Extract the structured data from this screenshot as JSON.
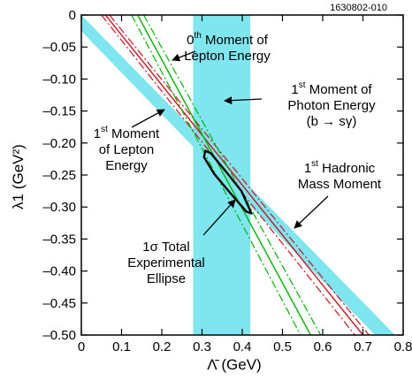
{
  "figure_id": "1630802-010",
  "chart_data": {
    "type": "line",
    "title": "",
    "xlabel": "Λ̄ (GeV)",
    "ylabel": "λ1 (GeV²)",
    "xlim": [
      0,
      0.8
    ],
    "ylim": [
      -0.5,
      0
    ],
    "x_ticks": [
      "0",
      "0.1",
      "0.2",
      "0.3",
      "0.4",
      "0.5",
      "0.6",
      "0.7",
      "0.8"
    ],
    "y_ticks": [
      "0",
      "–0.05",
      "–0.10",
      "–0.15",
      "–0.20",
      "–0.25",
      "–0.30",
      "–0.35",
      "–0.40",
      "–0.45",
      "–0.50"
    ],
    "grid": false,
    "legend": "none",
    "colors": {
      "band": "#7fe6f0",
      "ellipse": "#000000",
      "red_lines": "#c8141e",
      "green_lines": "#00b400"
    },
    "bands": [
      {
        "label_key": "hadronic",
        "orientation": "diagonal",
        "upper_edge": [
          [
            0.0,
            0.0
          ],
          [
            0.78,
            -0.5
          ]
        ],
        "lower_edge": [
          [
            0.0,
            -0.025
          ],
          [
            0.73,
            -0.5
          ]
        ]
      },
      {
        "label_key": "photon",
        "orientation": "vertical",
        "x_range": [
          0.278,
          0.42
        ]
      }
    ],
    "constraint_lines": [
      {
        "group": "lepton_1st",
        "style": "solid",
        "color": "red",
        "points": [
          [
            0.06,
            0.0
          ],
          [
            0.7,
            -0.5
          ]
        ]
      },
      {
        "group": "lepton_1st",
        "style": "dashed",
        "color": "red",
        "points": [
          [
            0.05,
            0.0
          ],
          [
            0.68,
            -0.5
          ]
        ]
      },
      {
        "group": "lepton_1st",
        "style": "dashed",
        "color": "red",
        "points": [
          [
            0.07,
            0.0
          ],
          [
            0.715,
            -0.5
          ]
        ]
      },
      {
        "group": "lepton_0th",
        "style": "solid",
        "color": "green",
        "points": [
          [
            0.14,
            0.0
          ],
          [
            0.57,
            -0.5
          ]
        ]
      },
      {
        "group": "lepton_0th",
        "style": "dashed",
        "color": "green",
        "points": [
          [
            0.125,
            0.0
          ],
          [
            0.545,
            -0.5
          ]
        ]
      },
      {
        "group": "lepton_0th",
        "style": "dashed",
        "color": "green",
        "points": [
          [
            0.155,
            0.0
          ],
          [
            0.595,
            -0.5
          ]
        ]
      }
    ],
    "ellipse": {
      "points": [
        [
          0.308,
          -0.212
        ],
        [
          0.322,
          -0.216
        ],
        [
          0.36,
          -0.245
        ],
        [
          0.398,
          -0.275
        ],
        [
          0.423,
          -0.31
        ],
        [
          0.41,
          -0.307
        ],
        [
          0.37,
          -0.278
        ],
        [
          0.33,
          -0.248
        ],
        [
          0.305,
          -0.222
        ]
      ]
    }
  },
  "annotations": {
    "lepton_0th": {
      "line1_pre": "0",
      "line1_sup": "th",
      "line1_post": " Moment of",
      "line2": "Lepton Energy"
    },
    "photon_1st": {
      "line1_pre": "1",
      "line1_sup": "st",
      "line1_post": " Moment of",
      "line2": "Photon Energy",
      "line3": "(b → sγ)"
    },
    "lepton_1st": {
      "line1_pre": "1",
      "line1_sup": "st",
      "line1_post": " Moment",
      "line2": "of Lepton",
      "line3": "Energy"
    },
    "hadronic_1st": {
      "line1_pre": "1",
      "line1_sup": "st",
      "line1_post": " Hadronic",
      "line2": "Mass Moment"
    },
    "ellipse": {
      "line1": "1σ Total",
      "line2": "Experimental",
      "line3": "Ellipse"
    }
  }
}
